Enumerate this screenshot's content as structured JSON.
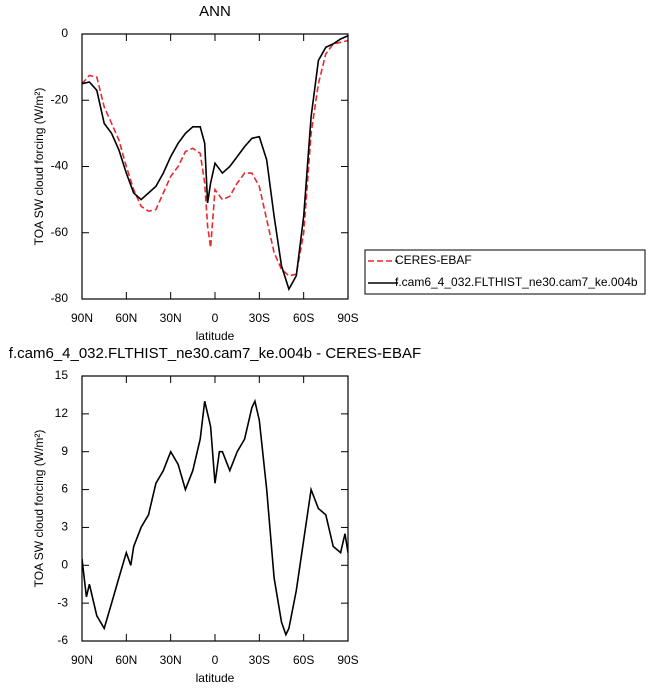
{
  "chart_data": [
    {
      "type": "line",
      "title": "ANN",
      "xlabel": "latitude",
      "ylabel": "TOA SW cloud forcing (W/m²)",
      "x": [
        90,
        85,
        80,
        75,
        70,
        65,
        60,
        55,
        50,
        45,
        40,
        35,
        30,
        25,
        20,
        15,
        10,
        7,
        5,
        3,
        0,
        -5,
        -10,
        -15,
        -20,
        -25,
        -30,
        -35,
        -40,
        -45,
        -50,
        -55,
        -60,
        -65,
        -70,
        -75,
        -80,
        -85,
        -90
      ],
      "series": [
        {
          "name": "CERES-EBAF",
          "color": "#e8292e",
          "dashed": true,
          "values": [
            -15,
            -12.5,
            -13,
            -22,
            -27,
            -32,
            -40,
            -47,
            -52,
            -53.5,
            -53,
            -48,
            -43,
            -40,
            -35.5,
            -34.5,
            -36,
            -45,
            -58,
            -64.5,
            -47,
            -50,
            -49,
            -45,
            -42,
            -42,
            -46,
            -56,
            -66,
            -71,
            -73,
            -72.5,
            -60,
            -30,
            -15,
            -6,
            -3,
            -2.5,
            -2
          ]
        },
        {
          "name": "f.cam6_4_032.FLTHIST_ne30.cam7_ke.004b",
          "color": "#000000",
          "dashed": false,
          "values": [
            -15,
            -14.5,
            -17,
            -27,
            -30,
            -35,
            -42,
            -48,
            -50,
            -48,
            -46,
            -42,
            -37,
            -33,
            -30,
            -28,
            -28,
            -33,
            -51,
            -45,
            -39,
            -42,
            -40,
            -37,
            -34,
            -31.5,
            -31,
            -38,
            -55,
            -70,
            -77,
            -73,
            -55,
            -25,
            -8,
            -4,
            -3,
            -1.5,
            -0.5
          ]
        }
      ],
      "xlim": [
        90,
        -90
      ],
      "xticks": [
        {
          "value": 90,
          "label": "90N"
        },
        {
          "value": 60,
          "label": "60N"
        },
        {
          "value": 30,
          "label": "30N"
        },
        0,
        {
          "value": -30,
          "label": "30S"
        },
        {
          "value": -60,
          "label": "60S"
        },
        {
          "value": -90,
          "label": "90S"
        }
      ],
      "ylim": [
        -80,
        0
      ],
      "yticks": [
        -80,
        -60,
        -40,
        -20,
        0
      ],
      "legend": "right"
    },
    {
      "type": "line",
      "title": "f.cam6_4_032.FLTHIST_ne30.cam7_ke.004b - CERES-EBAF",
      "xlabel": "latitude",
      "ylabel": "TOA SW cloud forcing (W/m²)",
      "x": [
        90,
        87,
        85,
        80,
        75,
        70,
        65,
        60,
        57,
        55,
        50,
        45,
        40,
        35,
        30,
        25,
        20,
        15,
        10,
        7,
        3,
        0,
        -3,
        -5,
        -10,
        -15,
        -20,
        -25,
        -27,
        -30,
        -35,
        -40,
        -45,
        -48,
        -50,
        -55,
        -60,
        -65,
        -70,
        -75,
        -80,
        -85,
        -88,
        -90
      ],
      "values": [
        0.5,
        -2.5,
        -1.5,
        -4,
        -5,
        -3,
        -1,
        1,
        0,
        1.5,
        3,
        4,
        6.5,
        7.5,
        9,
        8,
        6,
        7.5,
        10,
        13,
        11,
        6.5,
        9,
        9,
        7.5,
        9,
        10,
        12.5,
        13,
        11.5,
        6,
        -1,
        -4.5,
        -5.5,
        -5,
        -2,
        2,
        6,
        4.5,
        4,
        1.5,
        1,
        2.5,
        1
      ],
      "color": "#000000",
      "xlim": [
        90,
        -90
      ],
      "xticks": [
        {
          "value": 90,
          "label": "90N"
        },
        {
          "value": 60,
          "label": "60N"
        },
        {
          "value": 30,
          "label": "30N"
        },
        0,
        {
          "value": -30,
          "label": "30S"
        },
        {
          "value": -60,
          "label": "60S"
        },
        {
          "value": -90,
          "label": "90S"
        }
      ],
      "ylim": [
        -6,
        15
      ],
      "yticks": [
        -6,
        -3,
        0,
        3,
        6,
        9,
        12,
        15
      ]
    }
  ]
}
